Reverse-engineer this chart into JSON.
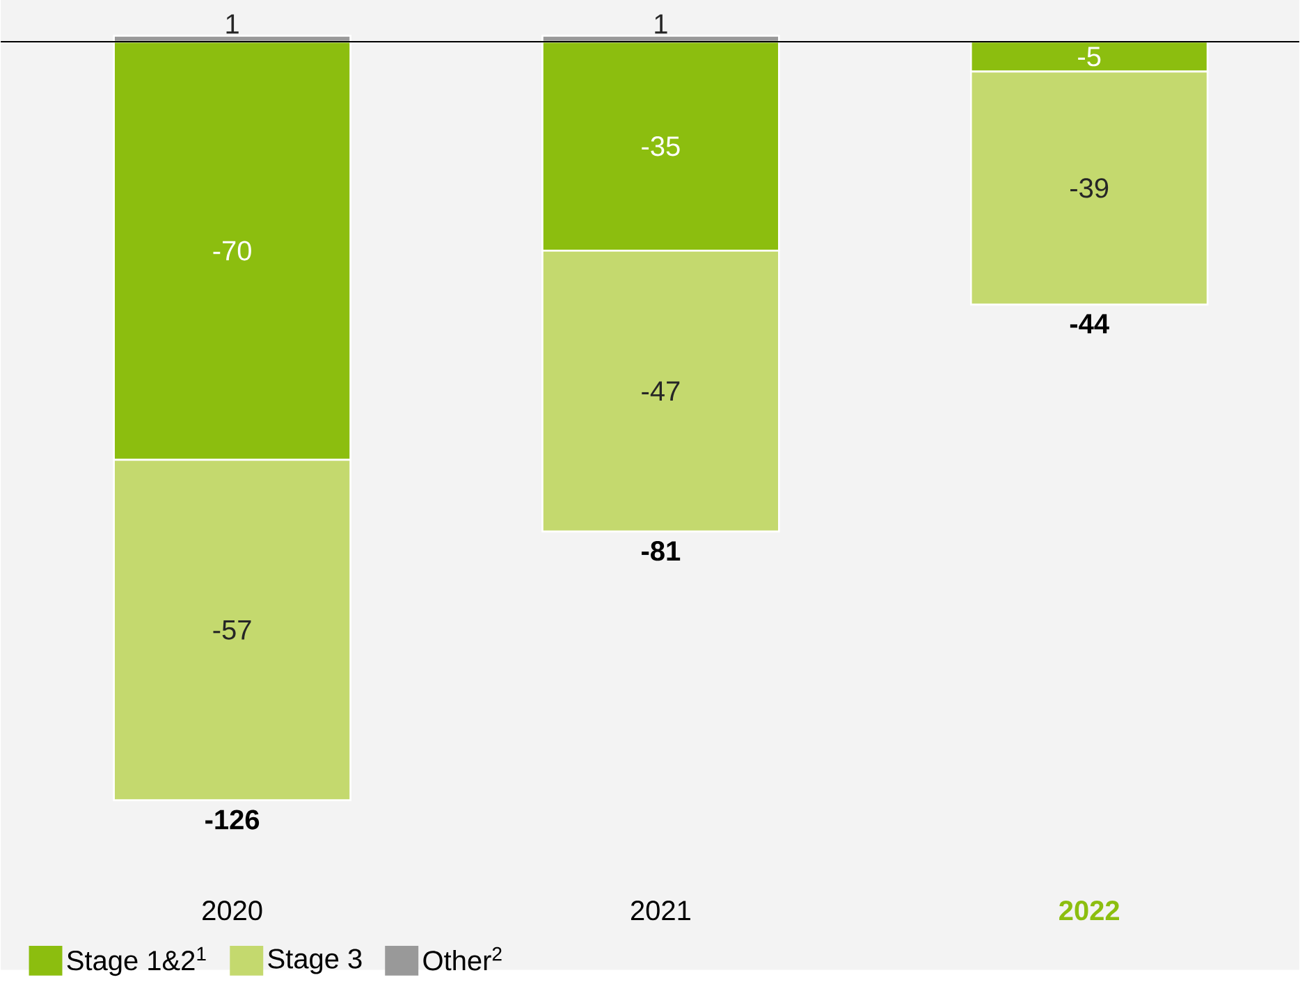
{
  "chart_data": {
    "type": "bar",
    "stacked": true,
    "categories": [
      "2020",
      "2021",
      "**2022**"
    ],
    "series": [
      {
        "name": "Stage 1&2$^{1}$",
        "color": "#8cbe0f",
        "values": [
          -70,
          -35,
          -5
        ]
      },
      {
        "name": "Stage 3",
        "color": "#c4d96e",
        "values": [
          -57,
          -47,
          -39
        ]
      },
      {
        "name": "Other$^{2}$",
        "color": "#999999",
        "values": [
          1,
          1,
          null
        ]
      }
    ],
    "data_labels": true,
    "totals": [
      "-126",
      "-81",
      "-44"
    ],
    "legend": "bottom left"
  }
}
